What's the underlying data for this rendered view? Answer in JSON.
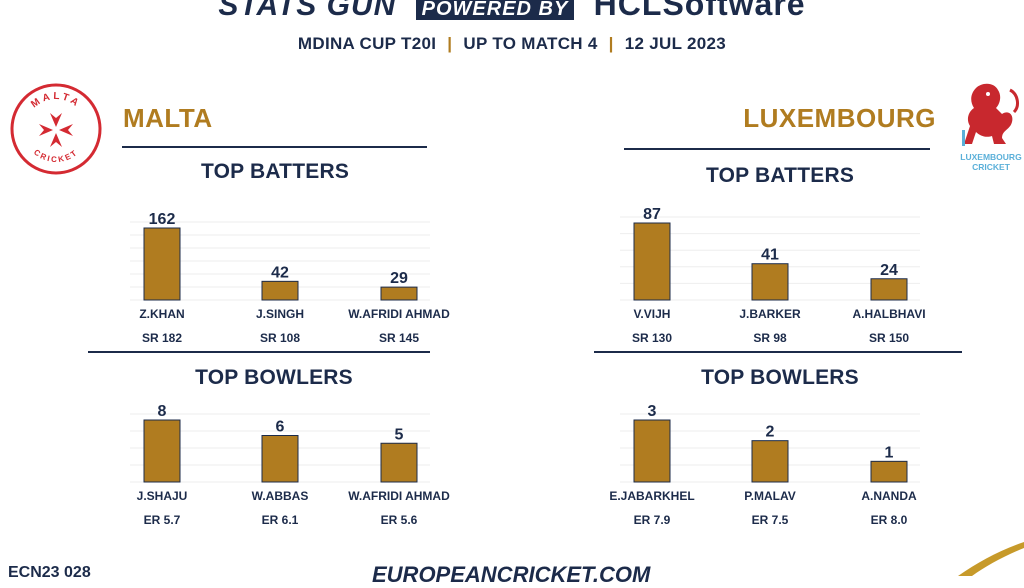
{
  "header": {
    "brand_left": "STATS GUN",
    "brand_powered": "POWERED BY",
    "brand_right": "HCLSoftware",
    "tournament": "MDINA CUP T20I",
    "scope": "UP TO MATCH 4",
    "date": "12 JUL 2023",
    "separator": "|"
  },
  "teams": {
    "left": {
      "name": "MALTA",
      "logo_ring_text": "MALTA",
      "logo_ring_text_bottom": "CRICKET"
    },
    "right": {
      "name": "LUXEMBOURG",
      "logo_text_1": "LUXEMBOURG",
      "logo_text_2": "CRICKET"
    }
  },
  "sections": {
    "batters_title": "TOP BATTERS",
    "bowlers_title": "TOP BOWLERS"
  },
  "footer": {
    "code": "ECN23 028",
    "site": "EUROPEANCRICKET.COM"
  },
  "colors": {
    "bar": "#b07c20",
    "navy": "#1c2b4a",
    "malta_red": "#d42a32",
    "lux_red": "#c8282e",
    "lux_blue": "#5bb0d9"
  },
  "chart_data": [
    {
      "type": "bar",
      "team": "MALTA",
      "title": "TOP BATTERS",
      "metric": "runs",
      "categories": [
        "Z.KHAN",
        "J.SINGH",
        "W.AFRIDI AHMAD"
      ],
      "values": [
        162,
        42,
        29
      ],
      "secondary": [
        "SR 182",
        "SR 108",
        "SR 145"
      ],
      "ylim": [
        0,
        162
      ]
    },
    {
      "type": "bar",
      "team": "MALTA",
      "title": "TOP BOWLERS",
      "metric": "wickets",
      "categories": [
        "J.SHAJU",
        "W.ABBAS",
        "W.AFRIDI AHMAD"
      ],
      "values": [
        8,
        6,
        5
      ],
      "secondary": [
        "ER 5.7",
        "ER 6.1",
        "ER 5.6"
      ],
      "ylim": [
        0,
        8
      ]
    },
    {
      "type": "bar",
      "team": "LUXEMBOURG",
      "title": "TOP BATTERS",
      "metric": "runs",
      "categories": [
        "V.VIJH",
        "J.BARKER",
        "A.HALBHAVI"
      ],
      "values": [
        87,
        41,
        24
      ],
      "secondary": [
        "SR 130",
        "SR 98",
        "SR 150"
      ],
      "ylim": [
        0,
        87
      ]
    },
    {
      "type": "bar",
      "team": "LUXEMBOURG",
      "title": "TOP BOWLERS",
      "metric": "wickets",
      "categories": [
        "E.JABARKHEL",
        "P.MALAV",
        "A.NANDA"
      ],
      "values": [
        3,
        2,
        1
      ],
      "secondary": [
        "ER 7.9",
        "ER 7.5",
        "ER 8.0"
      ],
      "ylim": [
        0,
        3
      ]
    }
  ]
}
